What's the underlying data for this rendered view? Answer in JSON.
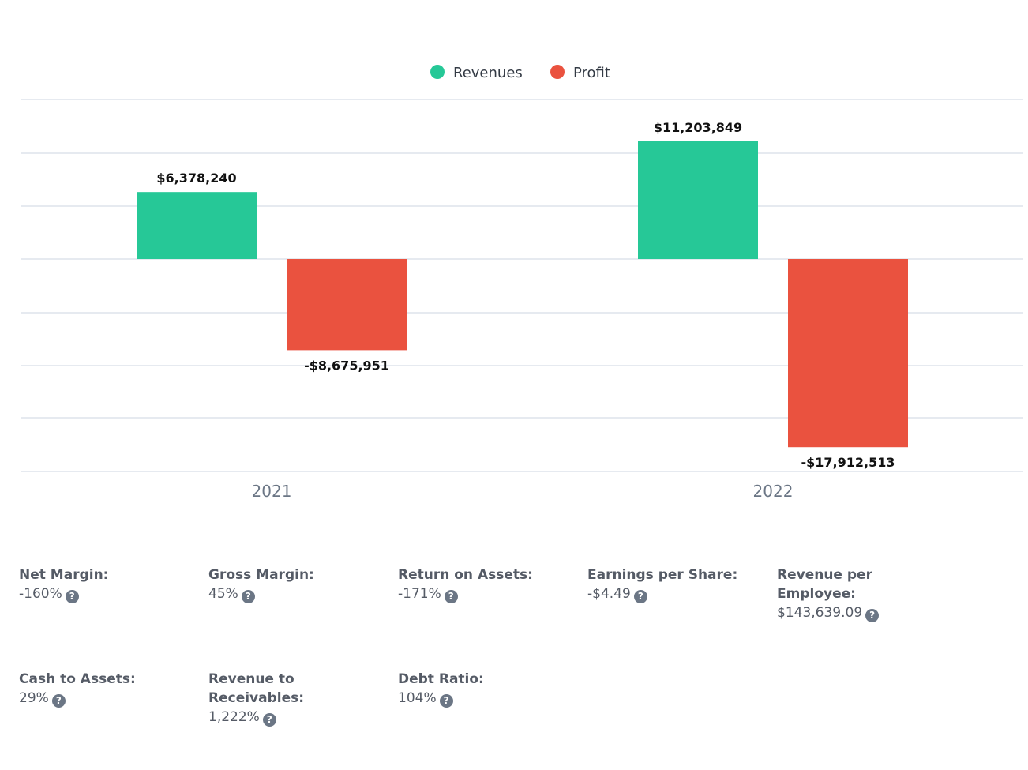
{
  "chart_data": {
    "type": "bar",
    "categories": [
      "2021",
      "2022"
    ],
    "series": [
      {
        "name": "Revenues",
        "color": "#26c897",
        "values": [
          6378240,
          11203849
        ],
        "labels": [
          "$6,378,240",
          "$11,203,849"
        ]
      },
      {
        "name": "Profit",
        "color": "#ea523f",
        "values": [
          -8675951,
          -17912513
        ],
        "labels": [
          "-$8,675,951",
          "-$17,912,513"
        ]
      }
    ],
    "legend_position": "top-center",
    "grid": true,
    "ylim": [
      -20000000,
      15000000
    ]
  },
  "metrics": [
    {
      "label": "Net Margin:",
      "value": "-160%"
    },
    {
      "label": "Gross Margin:",
      "value": "45%"
    },
    {
      "label": "Return on Assets:",
      "value": "-171%"
    },
    {
      "label": "Earnings per Share:",
      "value": "-$4.49"
    },
    {
      "label": "Revenue per Employee:",
      "value": "$143,639.09"
    },
    {
      "label": "Cash to Assets:",
      "value": "29%"
    },
    {
      "label": "Revenue to Receivables:",
      "value": "1,222%"
    },
    {
      "label": "Debt Ratio:",
      "value": "104%"
    }
  ],
  "help_icon": "question-circle-icon"
}
